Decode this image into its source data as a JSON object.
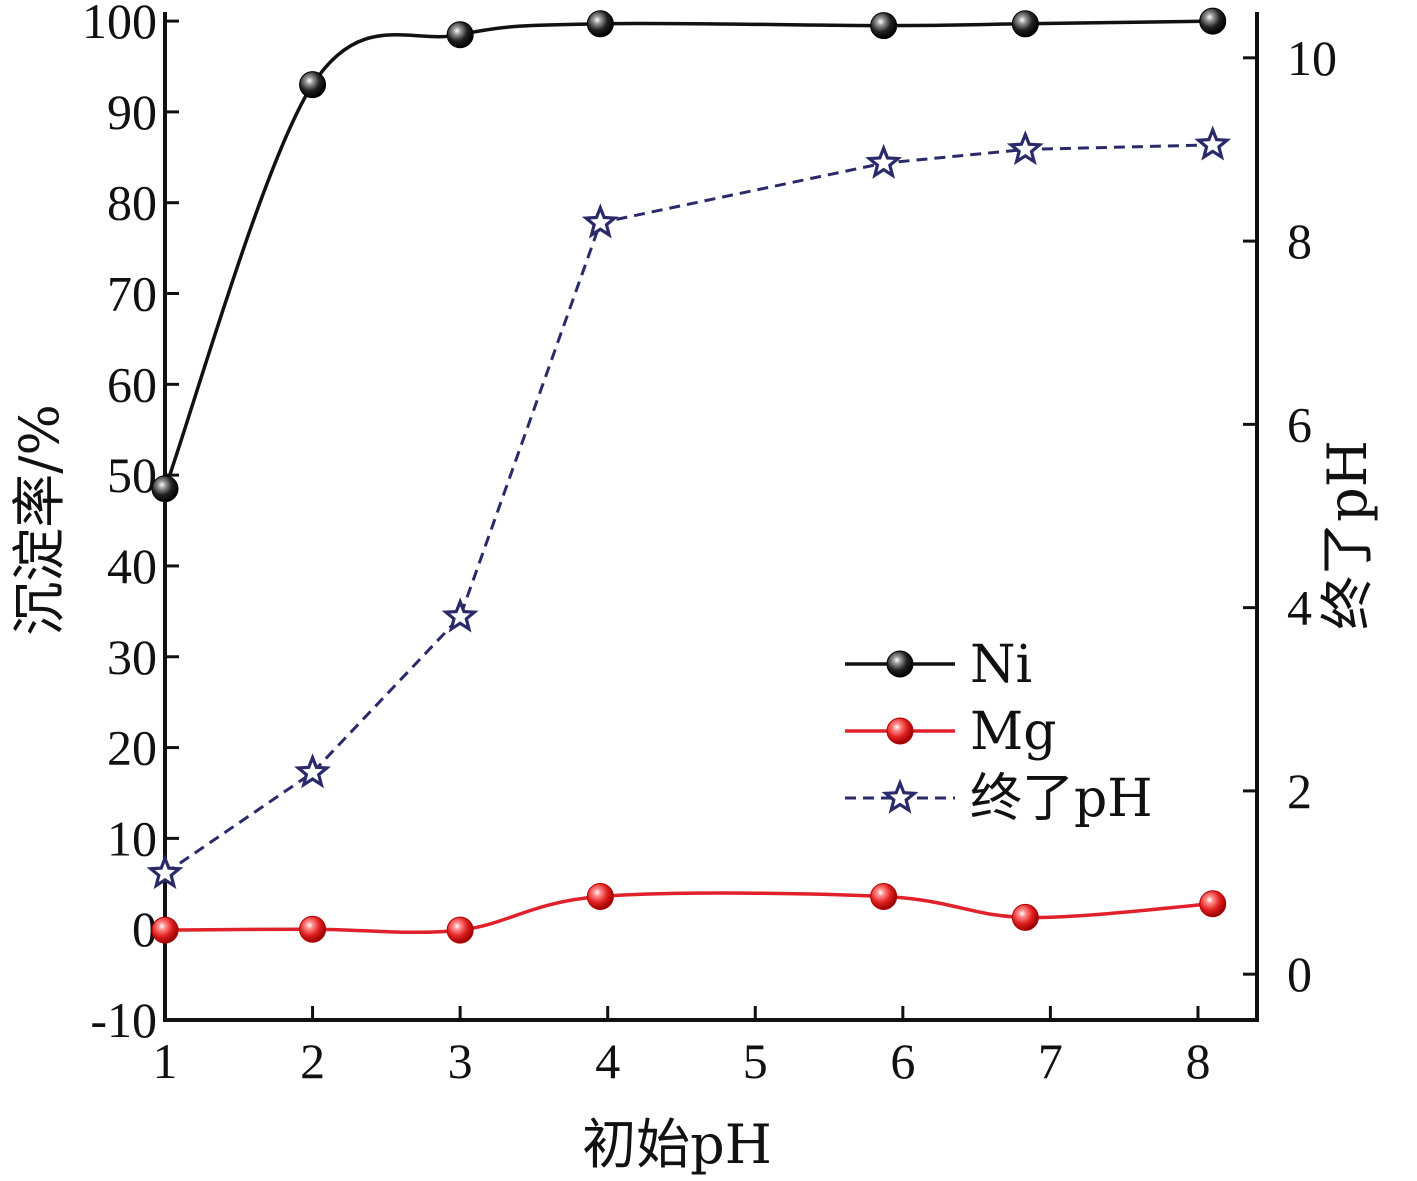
{
  "chart_data": {
    "type": "line",
    "x": [
      1,
      2,
      3,
      3.95,
      5.87,
      6.83,
      8.1
    ],
    "series": [
      {
        "name": "Ni",
        "axis": "left",
        "marker": "sphere",
        "line": "smooth-solid",
        "color": "#111111",
        "values": [
          48.5,
          93,
          98.5,
          99.7,
          99.5,
          99.7,
          100
        ]
      },
      {
        "name": "Mg",
        "axis": "left",
        "marker": "sphere",
        "line": "smooth-solid",
        "color": "#e0202a",
        "values": [
          -0.1,
          0,
          -0.1,
          3.6,
          3.6,
          1.3,
          2.8
        ]
      },
      {
        "name": "终了pH",
        "axis": "right",
        "marker": "star-outline",
        "line": "dashed",
        "color": "#2a2a6a",
        "values": [
          1.1,
          2.2,
          3.9,
          8.2,
          8.85,
          9.0,
          9.05
        ]
      }
    ],
    "xlabel": "初始pH",
    "ylabel": "沉淀率/%",
    "y2label": "终了pH",
    "xlim": [
      1,
      8.4
    ],
    "ylim": [
      -10,
      101
    ],
    "y2lim": [
      -0.5,
      10.5
    ],
    "xticks": [
      "1",
      "2",
      "3",
      "4",
      "5",
      "6",
      "7",
      "8"
    ],
    "yticks": [
      "-10",
      "0",
      "10",
      "20",
      "30",
      "40",
      "50",
      "60",
      "70",
      "80",
      "90",
      "100"
    ],
    "y2ticks": [
      "0",
      "2",
      "4",
      "6",
      "8",
      "10"
    ],
    "legend": {
      "position": "bottom-right",
      "entries": [
        "Ni",
        "Mg",
        "终了pH"
      ]
    },
    "grid": false
  }
}
